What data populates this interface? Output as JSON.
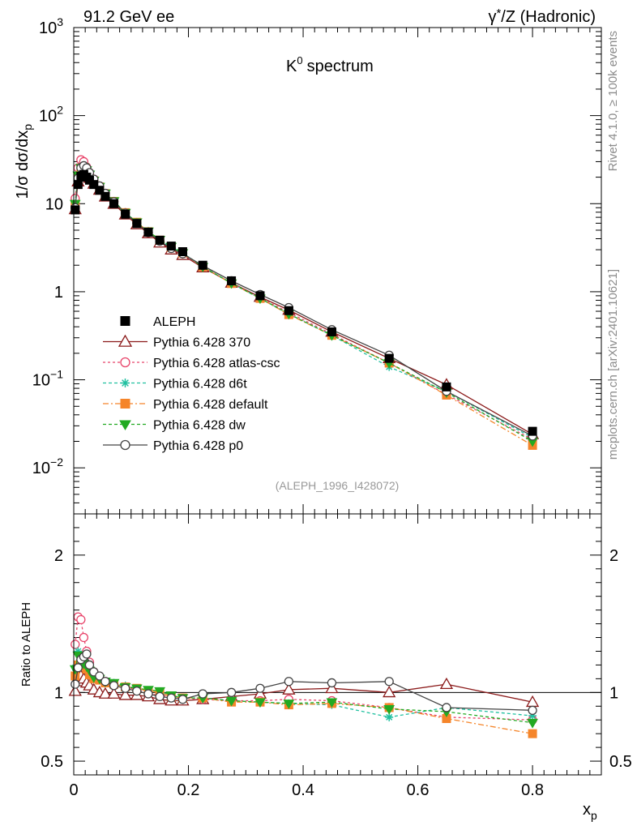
{
  "header": {
    "left": "91.2 GeV ee",
    "right_gamma": "γ",
    "right_rest": "/Z (Hadronic)"
  },
  "side_text": {
    "top": "Rivet 4.1.0, ≥ 100k events",
    "bottom": "mcplots.cern.ch [arXiv:2401.10621]"
  },
  "chart_data": [
    {
      "type": "line",
      "panel": "main",
      "title": "spectrum",
      "title_symbol": "K",
      "title_sup": "0",
      "ylabel": "1/σ  dσ/dx",
      "ylabel_sub": "p",
      "yscale": "log",
      "ylim": [
        0.003,
        1000
      ],
      "xlim": [
        0,
        0.92
      ],
      "y_tick_labels": [
        {
          "v": 1000,
          "b": "10",
          "e": "3"
        },
        {
          "v": 100,
          "b": "10",
          "e": "2"
        },
        {
          "v": 10,
          "b": "10",
          "e": ""
        },
        {
          "v": 1,
          "b": "1",
          "e": ""
        },
        {
          "v": 0.1,
          "b": "10",
          "e": "−1"
        },
        {
          "v": 0.01,
          "b": "10",
          "e": "−2"
        }
      ],
      "annotation": "(ALEPH_1996_I428072)",
      "legend_position": "middle-left",
      "x": [
        0.0025,
        0.0075,
        0.0125,
        0.0175,
        0.0225,
        0.0275,
        0.035,
        0.045,
        0.055,
        0.07,
        0.09,
        0.11,
        0.13,
        0.15,
        0.17,
        0.19,
        0.225,
        0.275,
        0.325,
        0.375,
        0.45,
        0.55,
        0.65,
        0.8
      ],
      "series": [
        {
          "name": "ALEPH",
          "color": "#000000",
          "marker": "square",
          "dash": "none",
          "values": [
            8.5,
            16.5,
            20.5,
            21.5,
            20.0,
            18.5,
            16.5,
            14.2,
            12.1,
            10.0,
            7.6,
            5.95,
            4.75,
            3.85,
            3.3,
            2.85,
            2.0,
            1.33,
            0.9,
            0.61,
            0.35,
            0.175,
            0.083,
            0.026
          ]
        },
        {
          "name": "Pythia 6.428 370",
          "color": "#8b1a1a",
          "marker": "triangle-open",
          "dash": "none",
          "values": [
            8.6,
            17.8,
            23.0,
            23.8,
            21.5,
            19.5,
            16.8,
            14.3,
            12.0,
            9.9,
            7.5,
            5.8,
            4.6,
            3.6,
            3.0,
            2.6,
            1.88,
            1.26,
            0.87,
            0.62,
            0.35,
            0.175,
            0.088,
            0.024
          ]
        },
        {
          "name": "Pythia 6.428 atlas-csc",
          "color": "#e8446a",
          "marker": "circle-open",
          "dash": "3,3",
          "values": [
            11.5,
            25.5,
            31.5,
            30.0,
            26.0,
            22.5,
            19.0,
            15.8,
            13.1,
            10.6,
            7.9,
            6.1,
            4.7,
            3.75,
            3.1,
            2.7,
            1.9,
            1.25,
            0.85,
            0.58,
            0.33,
            0.155,
            0.068,
            0.021
          ]
        },
        {
          "name": "Pythia 6.428 d6t",
          "color": "#20c0a0",
          "marker": "star",
          "dash": "4,3",
          "values": [
            10.0,
            21.5,
            26.0,
            26.5,
            24.0,
            21.5,
            18.5,
            15.6,
            13.1,
            10.7,
            7.9,
            6.15,
            4.8,
            3.85,
            3.2,
            2.75,
            1.92,
            1.25,
            0.84,
            0.56,
            0.32,
            0.14,
            0.074,
            0.022
          ]
        },
        {
          "name": "Pythia 6.428 default",
          "color": "#f5852a",
          "marker": "square-filled",
          "dash": "7,3,2,3",
          "values": [
            9.5,
            20.0,
            25.0,
            25.5,
            23.5,
            21.0,
            18.2,
            15.5,
            13.0,
            10.6,
            7.9,
            6.15,
            4.8,
            3.85,
            3.2,
            2.75,
            1.92,
            1.24,
            0.84,
            0.55,
            0.32,
            0.155,
            0.067,
            0.018
          ]
        },
        {
          "name": "Pythia 6.428 dw",
          "color": "#22aa22",
          "marker": "triangle-down-filled",
          "dash": "4,3",
          "values": [
            10.0,
            21.0,
            25.5,
            26.0,
            24.0,
            21.5,
            18.3,
            15.6,
            13.1,
            10.7,
            7.9,
            6.15,
            4.85,
            3.9,
            3.25,
            2.75,
            1.92,
            1.25,
            0.84,
            0.56,
            0.32,
            0.155,
            0.072,
            0.02
          ]
        },
        {
          "name": "Pythia 6.428 p0",
          "color": "#444444",
          "marker": "circle-open",
          "dash": "none",
          "values": [
            9.0,
            19.5,
            25.5,
            27.0,
            25.5,
            22.5,
            19.0,
            15.9,
            13.1,
            10.5,
            7.8,
            6.0,
            4.7,
            3.75,
            3.1,
            2.7,
            1.98,
            1.33,
            0.93,
            0.66,
            0.37,
            0.19,
            0.074,
            0.023
          ]
        }
      ]
    },
    {
      "type": "line",
      "panel": "ratio",
      "ylabel": "Ratio to ALEPH",
      "xlabel": "x",
      "xlabel_sub": "p",
      "ylim": [
        0.4,
        2.3
      ],
      "xlim": [
        0,
        0.92
      ],
      "x_tick_labels": [
        {
          "v": 0,
          "t": "0"
        },
        {
          "v": 0.2,
          "t": "0.2"
        },
        {
          "v": 0.4,
          "t": "0.4"
        },
        {
          "v": 0.6,
          "t": "0.6"
        },
        {
          "v": 0.8,
          "t": "0.8"
        }
      ],
      "y_tick_labels": [
        {
          "v": 2,
          "t": "2"
        },
        {
          "v": 1,
          "t": "1"
        },
        {
          "v": 0.5,
          "t": "0.5"
        }
      ],
      "x": [
        0.0025,
        0.0075,
        0.0125,
        0.0175,
        0.0225,
        0.0275,
        0.035,
        0.045,
        0.055,
        0.07,
        0.09,
        0.11,
        0.13,
        0.15,
        0.17,
        0.19,
        0.225,
        0.275,
        0.325,
        0.375,
        0.45,
        0.55,
        0.65,
        0.8
      ],
      "series": [
        {
          "name": "Pythia 6.428 370",
          "color": "#8b1a1a",
          "marker": "triangle-open",
          "dash": "none",
          "values": [
            1.01,
            1.08,
            1.12,
            1.1,
            1.07,
            1.05,
            1.02,
            1.0,
            0.99,
            0.99,
            0.98,
            0.98,
            0.97,
            0.95,
            0.94,
            0.94,
            0.95,
            0.97,
            0.99,
            1.02,
            1.03,
            1.0,
            1.06,
            0.93
          ]
        },
        {
          "name": "Pythia 6.428 atlas-csc",
          "color": "#e8446a",
          "marker": "circle-open",
          "dash": "3,3",
          "values": [
            1.35,
            1.55,
            1.53,
            1.4,
            1.3,
            1.22,
            1.15,
            1.11,
            1.08,
            1.06,
            1.04,
            1.02,
            0.99,
            0.98,
            0.97,
            0.96,
            0.95,
            0.94,
            0.94,
            0.95,
            0.94,
            0.89,
            0.82,
            0.8
          ]
        },
        {
          "name": "Pythia 6.428 d6t",
          "color": "#20c0a0",
          "marker": "star",
          "dash": "4,3",
          "values": [
            1.18,
            1.3,
            1.27,
            1.24,
            1.2,
            1.16,
            1.12,
            1.1,
            1.08,
            1.07,
            1.05,
            1.03,
            1.01,
            1.0,
            0.97,
            0.96,
            0.96,
            0.94,
            0.93,
            0.92,
            0.91,
            0.82,
            0.89,
            0.83
          ]
        },
        {
          "name": "Pythia 6.428 default",
          "color": "#f5852a",
          "marker": "square-filled",
          "dash": "7,3,2,3",
          "values": [
            1.12,
            1.2,
            1.22,
            1.19,
            1.17,
            1.13,
            1.1,
            1.09,
            1.07,
            1.06,
            1.04,
            1.03,
            1.01,
            1.0,
            0.97,
            0.96,
            0.96,
            0.93,
            0.93,
            0.91,
            0.92,
            0.89,
            0.81,
            0.7
          ]
        },
        {
          "name": "Pythia 6.428 dw",
          "color": "#22aa22",
          "marker": "triangle-down-filled",
          "dash": "4,3",
          "values": [
            1.17,
            1.27,
            1.25,
            1.21,
            1.19,
            1.16,
            1.11,
            1.1,
            1.08,
            1.07,
            1.04,
            1.03,
            1.02,
            1.01,
            0.98,
            0.96,
            0.96,
            0.94,
            0.93,
            0.92,
            0.93,
            0.88,
            0.86,
            0.78
          ]
        },
        {
          "name": "Pythia 6.428 p0",
          "color": "#444444",
          "marker": "circle-open",
          "dash": "none",
          "values": [
            1.06,
            1.18,
            1.24,
            1.26,
            1.28,
            1.2,
            1.15,
            1.12,
            1.08,
            1.05,
            1.03,
            1.01,
            0.99,
            0.97,
            0.96,
            0.95,
            0.99,
            1.0,
            1.03,
            1.08,
            1.07,
            1.08,
            0.89,
            0.87
          ]
        }
      ]
    }
  ]
}
